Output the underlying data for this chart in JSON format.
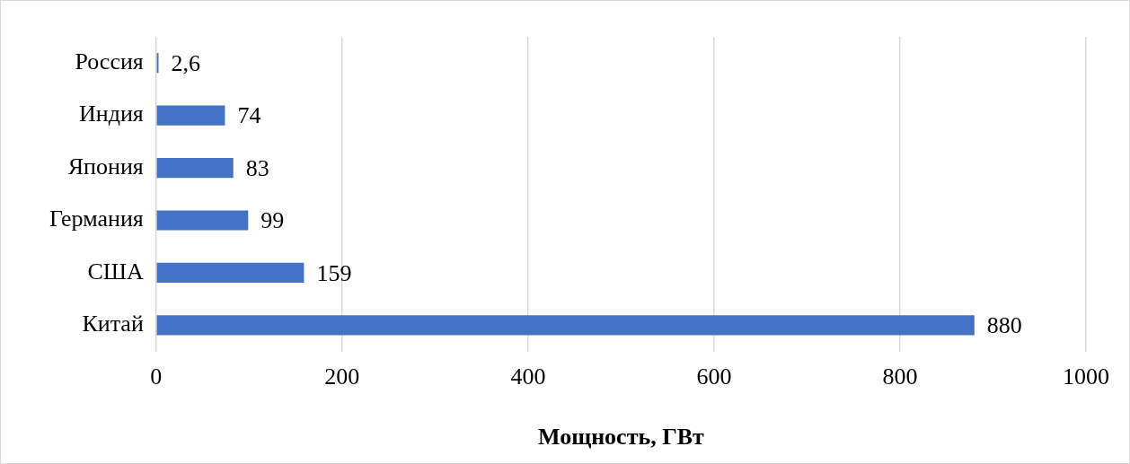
{
  "chart_data": {
    "type": "bar",
    "orientation": "horizontal",
    "xlabel": "Мощность, ГВт",
    "categories": [
      "Россия",
      "Индия",
      "Япония",
      "Германия",
      "США",
      "Китай"
    ],
    "values": [
      2.6,
      74,
      83,
      99,
      159,
      880
    ],
    "value_labels": [
      "2,6",
      "74",
      "83",
      "99",
      "159",
      "880"
    ],
    "color": "#4472c4",
    "xlim": [
      0,
      1000
    ],
    "xticks": [
      0,
      200,
      400,
      600,
      800,
      1000
    ],
    "grid": "x",
    "legend": false
  }
}
